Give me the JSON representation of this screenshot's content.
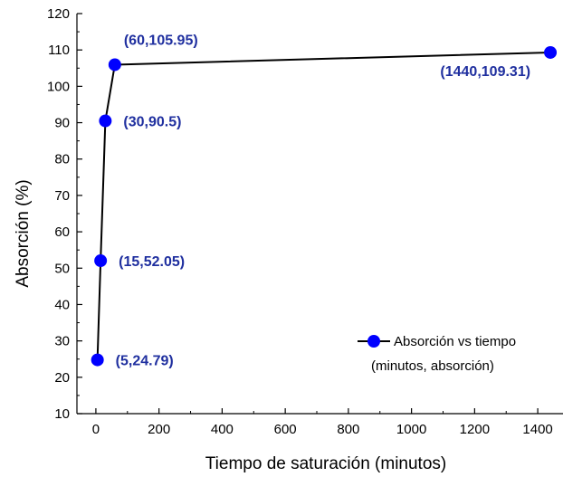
{
  "chart_data": {
    "type": "scatter",
    "title": "",
    "xlabel": "Tiempo de saturación (minutos)",
    "ylabel": "Absorción (%)",
    "xlim": [
      -60,
      1480
    ],
    "ylim": [
      10,
      120
    ],
    "x_ticks": [
      0,
      200,
      400,
      600,
      800,
      1000,
      1200,
      1400
    ],
    "y_ticks": [
      10,
      20,
      30,
      40,
      50,
      60,
      70,
      80,
      90,
      100,
      110,
      120
    ],
    "grid": false,
    "series": [
      {
        "name": "Absorción vs tiempo",
        "line": true,
        "marker": "circle",
        "color": "#0000ff",
        "points": [
          {
            "x": 5,
            "y": 24.79,
            "label": "(5,24.79)"
          },
          {
            "x": 15,
            "y": 52.05,
            "label": "(15,52.05)"
          },
          {
            "x": 30,
            "y": 90.5,
            "label": "(30,90.5)"
          },
          {
            "x": 60,
            "y": 105.95,
            "label": "(60,105.95)"
          },
          {
            "x": 1440,
            "y": 109.31,
            "label": "(1440,109.31)"
          }
        ]
      }
    ],
    "legend": {
      "placement": "bottom-right",
      "entry": "Absorción vs tiempo",
      "subtitle": "(minutos, absorción)"
    },
    "colors": {
      "line": "#000000",
      "marker": "#0000ff",
      "label": "#1f2f9f"
    }
  }
}
